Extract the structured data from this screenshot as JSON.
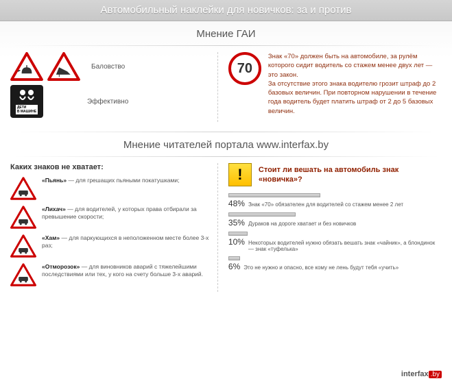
{
  "header": {
    "title": "Автомобильный наклейки для новичков: за и против"
  },
  "gai": {
    "title": "Мнение ГАИ",
    "label1": "Баловство",
    "label2": "Эффективно",
    "kids_text": "ДЕТИ",
    "kids_sub": "В МАШИНЕ",
    "seventy": "70",
    "text": "Знак «70» должен быть на автомобиле, за рулём которого сидит водитель со стажем менее двух лет — это закон.\nЗа отсутствие этого знака водителю грозит штраф до 2 базовых величин. При повторном нарушении в течение года водитель будет платить штраф от 2 до 5 базовых величин.",
    "sign_border": "#cc0000",
    "sign_fill": "#ffffff"
  },
  "readers": {
    "title": "Мнение  читателей портала www.interfax.by",
    "missing_title": "Каких знаков не хватает:",
    "items": [
      {
        "name": "«Пьянь»",
        "desc": " — для грешащих пьяными покатушками;"
      },
      {
        "name": "«Лихач»",
        "desc": " — для водителей, у которых права отбирали за превышение скорости;"
      },
      {
        "name": "«Хам»",
        "desc": " — для паркующихся в неположенном месте более 3-х раз;"
      },
      {
        "name": "«Отморозок»",
        "desc": " — для виновников аварий с тяжелейшими последствиями или тех, у кого на счету больше 3-х аварий."
      }
    ],
    "poll": {
      "icon": "!",
      "title": "Стоит ли вешать на автомобиль знак «новичка»?",
      "bars": [
        {
          "pct": "48%",
          "width": 48,
          "label": "Знак «70» обязателен для водителей со стажем менее 2 лет"
        },
        {
          "pct": "35%",
          "width": 35,
          "label": "Дураков на дороге хватает и без новичков"
        },
        {
          "pct": "10%",
          "width": 10,
          "label": "Некоторых водителей нужно обязать вешать знак «чайник», а блондинок — знак «туфелька»"
        },
        {
          "pct": "6%",
          "width": 6,
          "label": "Это не нужно и опасно, все кому не лень будут тебя «учить»"
        }
      ]
    }
  },
  "footer": {
    "brand": "interfax",
    "tld": ".by"
  }
}
